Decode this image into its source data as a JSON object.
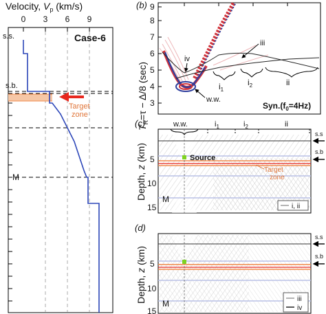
{
  "left_panel": {
    "xlabel": "Velocity, ",
    "xlabel_sym": "V",
    "xlabel_sub": "p",
    "xlabel_unit": " (km/s)",
    "ticks": [
      "0",
      "3",
      "6",
      "9"
    ],
    "case_label": "Case-6",
    "ss": "s.s.",
    "sb": "s.b.",
    "m": "M",
    "target_label_1": "Target",
    "target_label_2": "zone"
  },
  "panel_b": {
    "letter": "(b)",
    "ylabel": "T",
    "ylabel_sub": "R",
    "ylabel_rest": "=τ − Δ/8 (sec)",
    "yticks": [
      "3",
      "4",
      "5",
      "6",
      "7",
      "8",
      "9"
    ],
    "syn_label": "Syn.(f",
    "syn_sub": "0",
    "syn_rest": "=4Hz)",
    "ww": "w.w.",
    "iv": "iv",
    "iii": "iii",
    "i1": "i",
    "i1_sub": "1",
    "i2": "i",
    "i2_sub": "2",
    "ii": "ii"
  },
  "panel_c": {
    "letter": "(c)",
    "ylabel": "Depth, ",
    "ylabel_sym": "z",
    "ylabel_unit": " (km)",
    "yticks": [
      "5",
      "10",
      "15"
    ],
    "ww": "w.w.",
    "i1": "i",
    "i1_sub": "1",
    "i2": "i",
    "i2_sub": "2",
    "ii": "ii",
    "source": "Source",
    "target_1": "Target",
    "target_2": "zone",
    "m": "M",
    "ss": "s.s",
    "sb": "s.b",
    "legend": "i, ii"
  },
  "panel_d": {
    "letter": "(d)",
    "ylabel": "Depth, ",
    "ylabel_sym": "z",
    "ylabel_unit": " (km)",
    "yticks": [
      "5",
      "10",
      "15"
    ],
    "m": "M",
    "ss": "s.s",
    "sb": "s.b",
    "legend_iii": "iii",
    "legend_iv": "iv"
  },
  "colors": {
    "velocity_line": "#2b45b8",
    "target": "#f08a4b",
    "target_fill": "#f6c7a6",
    "arrow": "#e8281e",
    "source": "#7ed321",
    "trace_red": "#d0323a",
    "trace_blue": "#2e3f9e",
    "gray": "#9a9a9a"
  }
}
